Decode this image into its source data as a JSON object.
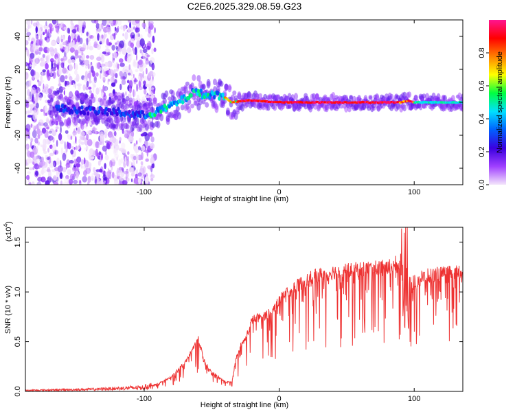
{
  "title": "C2E6.2025.329.08.59.G23",
  "chart_data": [
    {
      "type": "heatmap",
      "name": "spectrogram",
      "xlabel": "Height of straight line (km)",
      "ylabel": "Frequency (Hz)",
      "xlim": [
        -188,
        136
      ],
      "ylim": [
        -50,
        50
      ],
      "xticks": [
        -100,
        0,
        100
      ],
      "yticks": [
        -40,
        -20,
        0,
        20,
        40
      ],
      "xticklabels": [
        "-100",
        "0",
        "100"
      ],
      "yticklabels": [
        "-40",
        "-20",
        "0",
        "20",
        "40"
      ],
      "ridge": [
        [
          -160,
          -4
        ],
        [
          -140,
          -5
        ],
        [
          -120,
          -6
        ],
        [
          -100,
          -8
        ],
        [
          -85,
          -4
        ],
        [
          -70,
          2
        ],
        [
          -62,
          7
        ],
        [
          -55,
          4
        ],
        [
          -48,
          5
        ],
        [
          -40,
          3
        ],
        [
          -35,
          0
        ],
        [
          -25,
          1
        ],
        [
          -18,
          1
        ],
        [
          -10,
          0.5
        ],
        [
          0,
          0
        ],
        [
          20,
          0
        ],
        [
          60,
          0
        ],
        [
          90,
          0
        ],
        [
          95,
          1
        ],
        [
          100,
          0
        ],
        [
          136,
          0
        ]
      ],
      "colorbar": {
        "label": "Normalized spectral amplitude",
        "range": [
          0,
          1
        ],
        "ticks": [
          0.0,
          0.2,
          0.4,
          0.6,
          0.8
        ],
        "ticklabels": [
          "0.0",
          "0.2",
          "0.4",
          "0.6",
          "0.8"
        ],
        "colors": [
          "#f4e6fb",
          "#a040ff",
          "#3a00e0",
          "#0060ff",
          "#00e0ff",
          "#00ff40",
          "#ffff00",
          "#ff8000",
          "#ff0000",
          "#ff1490"
        ]
      }
    },
    {
      "type": "line",
      "name": "snr",
      "xlabel": "Height of straight line (km)",
      "ylabel": "SNR (10 * v/v)",
      "scale_label": "(x10",
      "scale_exp": "4",
      "scale_close": ")",
      "xlim": [
        -188,
        136
      ],
      "ylim": [
        0,
        1.65
      ],
      "xticks": [
        -100,
        0,
        100
      ],
      "yticks": [
        0.0,
        0.5,
        1.0,
        1.5
      ],
      "xticklabels": [
        "-100",
        "0",
        "100"
      ],
      "yticklabels": [
        "0.0",
        "0.5",
        "1.0",
        "1.5"
      ],
      "color": "#ee3333",
      "envelope": [
        [
          -188,
          0.01
        ],
        [
          -140,
          0.02
        ],
        [
          -100,
          0.04
        ],
        [
          -90,
          0.08
        ],
        [
          -80,
          0.15
        ],
        [
          -70,
          0.3
        ],
        [
          -60,
          0.55
        ],
        [
          -55,
          0.3
        ],
        [
          -50,
          0.2
        ],
        [
          -40,
          0.1
        ],
        [
          -35,
          0.1
        ],
        [
          -32,
          0.35
        ],
        [
          -28,
          0.5
        ],
        [
          -25,
          0.55
        ],
        [
          -20,
          0.75
        ],
        [
          -10,
          0.8
        ],
        [
          -5,
          0.85
        ],
        [
          0,
          0.95
        ],
        [
          5,
          1.05
        ],
        [
          15,
          1.12
        ],
        [
          25,
          1.2
        ],
        [
          40,
          1.25
        ],
        [
          60,
          1.28
        ],
        [
          80,
          1.3
        ],
        [
          88,
          1.35
        ],
        [
          92,
          1.45
        ],
        [
          96,
          1.2
        ],
        [
          100,
          1.15
        ],
        [
          110,
          1.22
        ],
        [
          136,
          1.25
        ]
      ]
    }
  ]
}
